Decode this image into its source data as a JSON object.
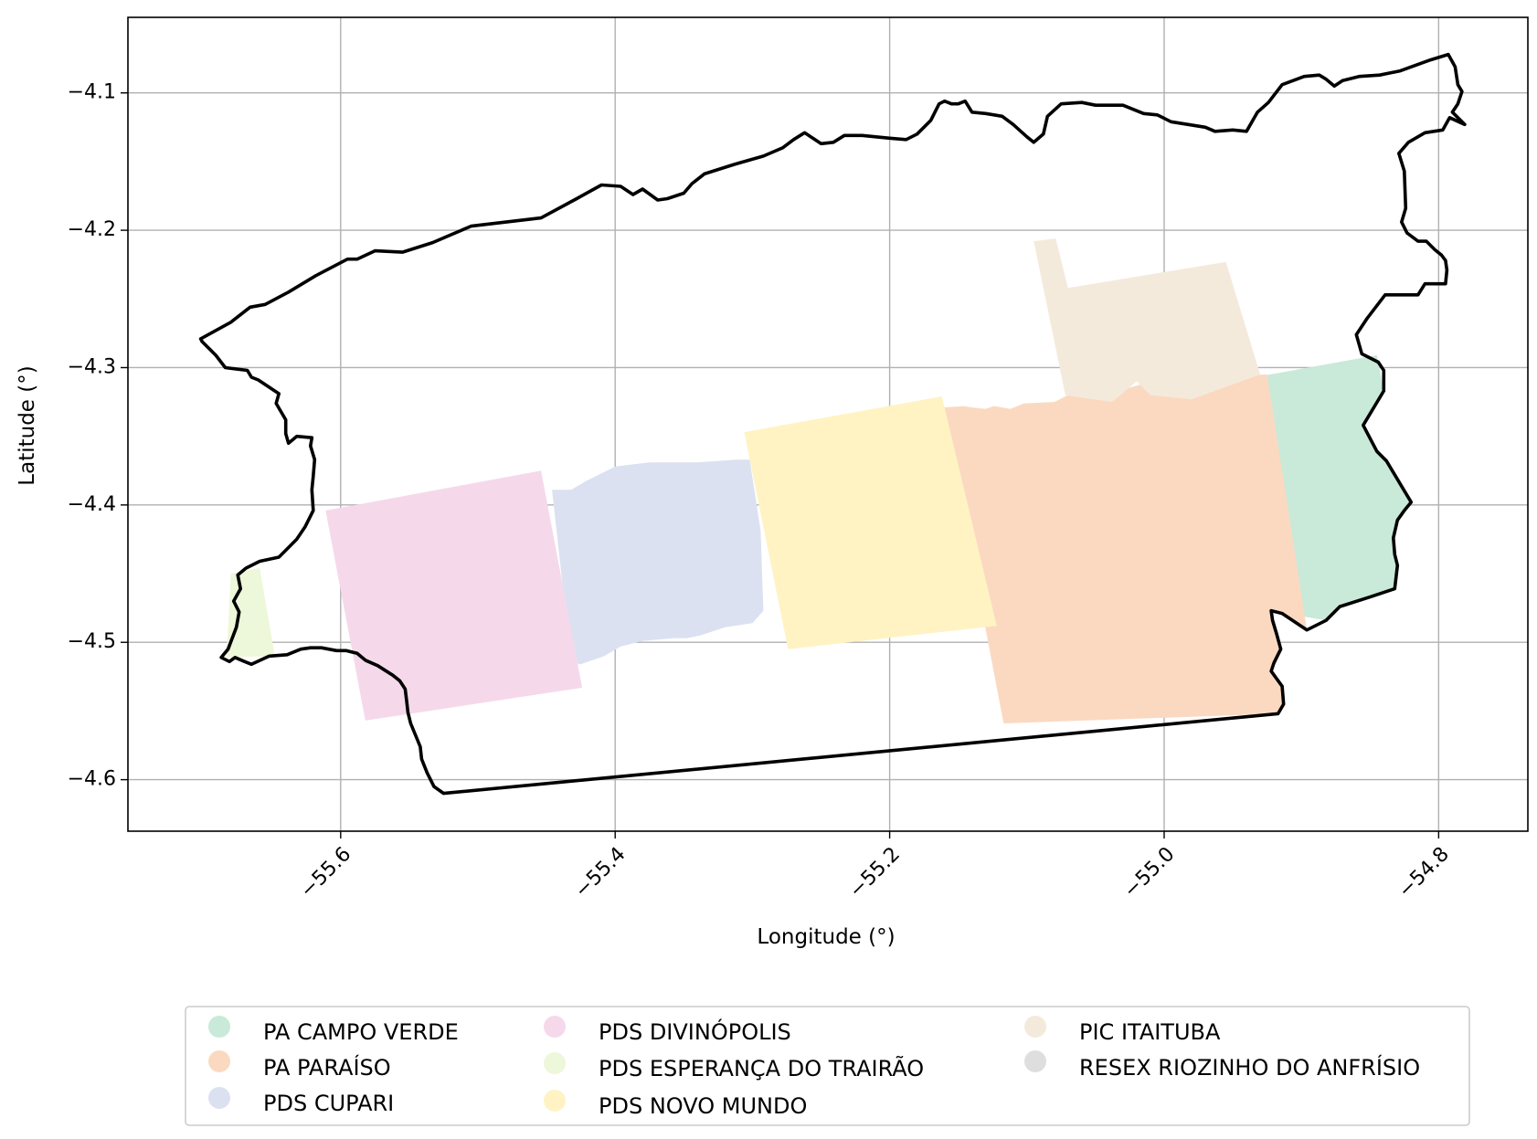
{
  "chart_data": {
    "type": "map",
    "xlabel": "Longitude (°)",
    "ylabel": "Latitude (°)",
    "xlim": [
      -55.755,
      -54.735
    ],
    "ylim": [
      -4.6375,
      -4.045
    ],
    "grid": true,
    "xticks": [
      {
        "value": -55.6,
        "label": "−55.6"
      },
      {
        "value": -55.4,
        "label": "−55.4"
      },
      {
        "value": -55.2,
        "label": "−55.2"
      },
      {
        "value": -55.0,
        "label": "−55.0"
      },
      {
        "value": -54.8,
        "label": "−54.8"
      }
    ],
    "yticks": [
      {
        "value": -4.1,
        "label": "−4.1"
      },
      {
        "value": -4.2,
        "label": "−4.2"
      },
      {
        "value": -4.3,
        "label": "−4.3"
      },
      {
        "value": -4.4,
        "label": "−4.4"
      },
      {
        "value": -4.5,
        "label": "−4.5"
      },
      {
        "value": -4.6,
        "label": "−4.6"
      }
    ],
    "outline": {
      "color": "#000000",
      "coords": [
        [
          -55.702,
          -4.279
        ],
        [
          -55.68,
          -4.267
        ],
        [
          -55.666,
          -4.256
        ],
        [
          -55.655,
          -4.254
        ],
        [
          -55.638,
          -4.245
        ],
        [
          -55.618,
          -4.233
        ],
        [
          -55.595,
          -4.221
        ],
        [
          -55.588,
          -4.221
        ],
        [
          -55.575,
          -4.215
        ],
        [
          -55.555,
          -4.216
        ],
        [
          -55.533,
          -4.209
        ],
        [
          -55.512,
          -4.2
        ],
        [
          -55.505,
          -4.197
        ],
        [
          -55.454,
          -4.191
        ],
        [
          -55.428,
          -4.177
        ],
        [
          -55.41,
          -4.167
        ],
        [
          -55.396,
          -4.168
        ],
        [
          -55.387,
          -4.174
        ],
        [
          -55.38,
          -4.17
        ],
        [
          -55.369,
          -4.178
        ],
        [
          -55.362,
          -4.177
        ],
        [
          -55.35,
          -4.173
        ],
        [
          -55.344,
          -4.166
        ],
        [
          -55.335,
          -4.159
        ],
        [
          -55.313,
          -4.152
        ],
        [
          -55.292,
          -4.146
        ],
        [
          -55.278,
          -4.14
        ],
        [
          -55.27,
          -4.134
        ],
        [
          -55.262,
          -4.129
        ],
        [
          -55.25,
          -4.137
        ],
        [
          -55.241,
          -4.136
        ],
        [
          -55.233,
          -4.131
        ],
        [
          -55.22,
          -4.131
        ],
        [
          -55.2,
          -4.133
        ],
        [
          -55.188,
          -4.134
        ],
        [
          -55.18,
          -4.13
        ],
        [
          -55.17,
          -4.12
        ],
        [
          -55.164,
          -4.108
        ],
        [
          -55.16,
          -4.106
        ],
        [
          -55.155,
          -4.108
        ],
        [
          -55.15,
          -4.108
        ],
        [
          -55.145,
          -4.106
        ],
        [
          -55.14,
          -4.114
        ],
        [
          -55.13,
          -4.115
        ],
        [
          -55.118,
          -4.117
        ],
        [
          -55.11,
          -4.123
        ],
        [
          -55.1,
          -4.132
        ],
        [
          -55.095,
          -4.136
        ],
        [
          -55.088,
          -4.13
        ],
        [
          -55.085,
          -4.117
        ],
        [
          -55.075,
          -4.108
        ],
        [
          -55.06,
          -4.107
        ],
        [
          -55.05,
          -4.109
        ],
        [
          -55.03,
          -4.109
        ],
        [
          -55.015,
          -4.115
        ],
        [
          -55.005,
          -4.116
        ],
        [
          -54.995,
          -4.121
        ],
        [
          -54.97,
          -4.125
        ],
        [
          -54.963,
          -4.128
        ],
        [
          -54.95,
          -4.127
        ],
        [
          -54.94,
          -4.128
        ],
        [
          -54.932,
          -4.114
        ],
        [
          -54.924,
          -4.107
        ],
        [
          -54.914,
          -4.094
        ],
        [
          -54.898,
          -4.088
        ],
        [
          -54.887,
          -4.087
        ],
        [
          -54.882,
          -4.09
        ],
        [
          -54.876,
          -4.095
        ],
        [
          -54.87,
          -4.091
        ],
        [
          -54.858,
          -4.088
        ],
        [
          -54.843,
          -4.087
        ],
        [
          -54.828,
          -4.084
        ],
        [
          -54.806,
          -4.076
        ],
        [
          -54.793,
          -4.072
        ],
        [
          -54.788,
          -4.081
        ],
        [
          -54.786,
          -4.094
        ],
        [
          -54.783,
          -4.099
        ],
        [
          -54.786,
          -4.108
        ],
        [
          -54.79,
          -4.114
        ],
        [
          -54.781,
          -4.123
        ],
        [
          -54.792,
          -4.118
        ],
        [
          -54.797,
          -4.127
        ],
        [
          -54.81,
          -4.129
        ],
        [
          -54.822,
          -4.136
        ],
        [
          -54.829,
          -4.144
        ],
        [
          -54.825,
          -4.157
        ],
        [
          -54.824,
          -4.184
        ],
        [
          -54.827,
          -4.194
        ],
        [
          -54.823,
          -4.202
        ],
        [
          -54.815,
          -4.208
        ],
        [
          -54.809,
          -4.208
        ],
        [
          -54.803,
          -4.214
        ],
        [
          -54.798,
          -4.218
        ],
        [
          -54.795,
          -4.222
        ],
        [
          -54.794,
          -4.229
        ],
        [
          -54.795,
          -4.239
        ],
        [
          -54.81,
          -4.239
        ],
        [
          -54.815,
          -4.247
        ],
        [
          -54.839,
          -4.247
        ],
        [
          -54.852,
          -4.264
        ],
        [
          -54.86,
          -4.276
        ],
        [
          -54.856,
          -4.29
        ],
        [
          -54.844,
          -4.296
        ],
        [
          -54.84,
          -4.302
        ],
        [
          -54.84,
          -4.317
        ],
        [
          -54.855,
          -4.342
        ],
        [
          -54.845,
          -4.361
        ],
        [
          -54.838,
          -4.368
        ],
        [
          -54.826,
          -4.388
        ],
        [
          -54.82,
          -4.398
        ],
        [
          -54.825,
          -4.404
        ],
        [
          -54.83,
          -4.411
        ],
        [
          -54.833,
          -4.424
        ],
        [
          -54.832,
          -4.436
        ],
        [
          -54.83,
          -4.444
        ],
        [
          -54.832,
          -4.461
        ],
        [
          -54.85,
          -4.467
        ],
        [
          -54.872,
          -4.474
        ],
        [
          -54.882,
          -4.484
        ],
        [
          -54.896,
          -4.491
        ],
        [
          -54.914,
          -4.479
        ],
        [
          -54.922,
          -4.477
        ],
        [
          -54.921,
          -4.484
        ],
        [
          -54.918,
          -4.494
        ],
        [
          -54.915,
          -4.505
        ],
        [
          -54.92,
          -4.515
        ],
        [
          -54.922,
          -4.521
        ],
        [
          -54.914,
          -4.532
        ],
        [
          -54.913,
          -4.545
        ],
        [
          -54.917,
          -4.552
        ],
        [
          -55.525,
          -4.61
        ],
        [
          -55.532,
          -4.605
        ],
        [
          -55.537,
          -4.595
        ],
        [
          -55.541,
          -4.585
        ],
        [
          -55.542,
          -4.576
        ],
        [
          -55.549,
          -4.559
        ],
        [
          -55.551,
          -4.551
        ],
        [
          -55.552,
          -4.542
        ],
        [
          -55.553,
          -4.534
        ],
        [
          -55.557,
          -4.528
        ],
        [
          -55.562,
          -4.524
        ],
        [
          -55.573,
          -4.517
        ],
        [
          -55.582,
          -4.513
        ],
        [
          -55.588,
          -4.508
        ],
        [
          -55.596,
          -4.506
        ],
        [
          -55.603,
          -4.506
        ],
        [
          -55.614,
          -4.504
        ],
        [
          -55.622,
          -4.504
        ],
        [
          -55.629,
          -4.505
        ],
        [
          -55.639,
          -4.509
        ],
        [
          -55.652,
          -4.51
        ],
        [
          -55.665,
          -4.516
        ],
        [
          -55.67,
          -4.514
        ],
        [
          -55.677,
          -4.511
        ],
        [
          -55.681,
          -4.514
        ],
        [
          -55.687,
          -4.511
        ],
        [
          -55.682,
          -4.505
        ],
        [
          -55.676,
          -4.489
        ],
        [
          -55.674,
          -4.478
        ],
        [
          -55.678,
          -4.47
        ],
        [
          -55.673,
          -4.461
        ],
        [
          -55.675,
          -4.451
        ],
        [
          -55.669,
          -4.446
        ],
        [
          -55.659,
          -4.441
        ],
        [
          -55.645,
          -4.438
        ],
        [
          -55.639,
          -4.432
        ],
        [
          -55.632,
          -4.425
        ],
        [
          -55.626,
          -4.416
        ],
        [
          -55.62,
          -4.404
        ],
        [
          -55.621,
          -4.389
        ],
        [
          -55.62,
          -4.379
        ],
        [
          -55.619,
          -4.367
        ],
        [
          -55.622,
          -4.357
        ],
        [
          -55.621,
          -4.351
        ],
        [
          -55.632,
          -4.35
        ],
        [
          -55.638,
          -4.355
        ],
        [
          -55.64,
          -4.348
        ],
        [
          -55.64,
          -4.338
        ],
        [
          -55.647,
          -4.326
        ],
        [
          -55.645,
          -4.319
        ],
        [
          -55.66,
          -4.309
        ],
        [
          -55.665,
          -4.307
        ],
        [
          -55.668,
          -4.302
        ],
        [
          -55.684,
          -4.3
        ],
        [
          -55.691,
          -4.291
        ],
        [
          -55.701,
          -4.281
        ],
        [
          -55.702,
          -4.279
        ]
      ]
    },
    "series": [
      {
        "name": "PA CAMPO VERDE",
        "color": "#c9e9d9",
        "coords": [
          [
            -54.934,
            -4.307
          ],
          [
            -54.845,
            -4.291
          ],
          [
            -54.84,
            -4.317
          ],
          [
            -54.855,
            -4.342
          ],
          [
            -54.845,
            -4.361
          ],
          [
            -54.838,
            -4.368
          ],
          [
            -54.826,
            -4.388
          ],
          [
            -54.82,
            -4.398
          ],
          [
            -54.83,
            -4.411
          ],
          [
            -54.833,
            -4.424
          ],
          [
            -54.832,
            -4.436
          ],
          [
            -54.83,
            -4.444
          ],
          [
            -54.832,
            -4.461
          ],
          [
            -54.85,
            -4.467
          ],
          [
            -54.872,
            -4.474
          ],
          [
            -54.882,
            -4.484
          ],
          [
            -54.905,
            -4.48
          ],
          [
            -54.934,
            -4.307
          ]
        ]
      },
      {
        "name": "PA PARAÍSO",
        "color": "#fbd9c1",
        "coords": [
          [
            -55.161,
            -4.329
          ],
          [
            -55.146,
            -4.328
          ],
          [
            -55.14,
            -4.329
          ],
          [
            -55.13,
            -4.33
          ],
          [
            -55.124,
            -4.328
          ],
          [
            -55.112,
            -4.33
          ],
          [
            -55.102,
            -4.326
          ],
          [
            -55.08,
            -4.325
          ],
          [
            -55.07,
            -4.32
          ],
          [
            -55.048,
            -4.321
          ],
          [
            -54.998,
            -4.307
          ],
          [
            -54.925,
            -4.305
          ],
          [
            -54.896,
            -4.491
          ],
          [
            -54.914,
            -4.479
          ],
          [
            -54.922,
            -4.477
          ],
          [
            -54.921,
            -4.484
          ],
          [
            -54.918,
            -4.494
          ],
          [
            -54.915,
            -4.505
          ],
          [
            -54.92,
            -4.515
          ],
          [
            -54.922,
            -4.521
          ],
          [
            -54.914,
            -4.532
          ],
          [
            -54.913,
            -4.545
          ],
          [
            -54.917,
            -4.552
          ],
          [
            -55.117,
            -4.559
          ],
          [
            -55.161,
            -4.329
          ]
        ]
      },
      {
        "name": "PDS CUPARI",
        "color": "#dbe1f0",
        "coords": [
          [
            -55.446,
            -4.389
          ],
          [
            -55.432,
            -4.389
          ],
          [
            -55.422,
            -4.383
          ],
          [
            -55.4,
            -4.372
          ],
          [
            -55.375,
            -4.369
          ],
          [
            -55.36,
            -4.369
          ],
          [
            -55.34,
            -4.369
          ],
          [
            -55.312,
            -4.367
          ],
          [
            -55.302,
            -4.367
          ],
          [
            -55.294,
            -4.419
          ],
          [
            -55.292,
            -4.477
          ],
          [
            -55.3,
            -4.486
          ],
          [
            -55.32,
            -4.489
          ],
          [
            -55.338,
            -4.495
          ],
          [
            -55.348,
            -4.497
          ],
          [
            -55.358,
            -4.497
          ],
          [
            -55.38,
            -4.499
          ],
          [
            -55.396,
            -4.503
          ],
          [
            -55.408,
            -4.51
          ],
          [
            -55.425,
            -4.516
          ],
          [
            -55.432,
            -4.515
          ],
          [
            -55.446,
            -4.389
          ]
        ]
      },
      {
        "name": "PDS DIVINÓPOLIS",
        "color": "#f5d9eb",
        "coords": [
          [
            -55.611,
            -4.404
          ],
          [
            -55.454,
            -4.375
          ],
          [
            -55.424,
            -4.533
          ],
          [
            -55.582,
            -4.557
          ],
          [
            -55.611,
            -4.404
          ]
        ]
      },
      {
        "name": "PDS ESPERANÇA DO TRAIRÃO",
        "color": "#edf7d9",
        "coords": [
          [
            -55.68,
            -4.45
          ],
          [
            -55.659,
            -4.446
          ],
          [
            -55.648,
            -4.51
          ],
          [
            -55.683,
            -4.511
          ],
          [
            -55.68,
            -4.45
          ]
        ]
      },
      {
        "name": "PDS NOVO MUNDO",
        "color": "#fff3c4",
        "coords": [
          [
            -55.306,
            -4.347
          ],
          [
            -55.162,
            -4.321
          ],
          [
            -55.122,
            -4.488
          ],
          [
            -55.274,
            -4.505
          ],
          [
            -55.306,
            -4.347
          ]
        ]
      },
      {
        "name": "PIC ITAITUBA",
        "color": "#f4eadc",
        "coords": [
          [
            -55.095,
            -4.208
          ],
          [
            -55.079,
            -4.206
          ],
          [
            -55.07,
            -4.242
          ],
          [
            -54.955,
            -4.223
          ],
          [
            -54.93,
            -4.305
          ],
          [
            -54.98,
            -4.323
          ],
          [
            -55.01,
            -4.32
          ],
          [
            -55.02,
            -4.31
          ],
          [
            -55.038,
            -4.325
          ],
          [
            -55.072,
            -4.32
          ],
          [
            -55.095,
            -4.208
          ]
        ]
      },
      {
        "name": "RESEX RIOZINHO DO ANFRÍSIO",
        "color": "#dedede",
        "coords": []
      }
    ]
  }
}
